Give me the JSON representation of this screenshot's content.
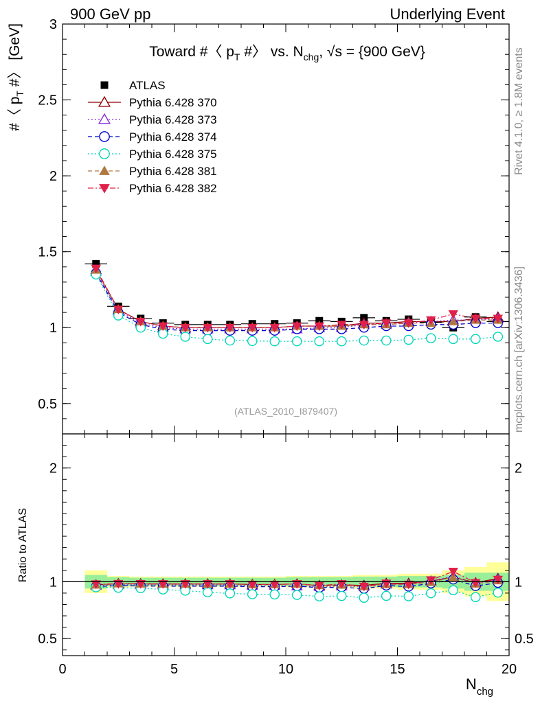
{
  "header": {
    "left": "900 GeV pp",
    "right": "Underlying Event"
  },
  "side_text": {
    "top": "Rivet 4.1.0, ≥ 1.8M events",
    "bottom": "mcplots.cern.ch [arXiv:1306.3436]"
  },
  "watermark": "(ATLAS_2010_I879407)",
  "chart_data": {
    "type": "line",
    "title_parts": {
      "prefix": "Toward #〈 p",
      "sub1": "T",
      "middle": " #〉 vs. N",
      "sub2": "chg",
      "suffix": ", √s = {900 GeV}"
    },
    "ylabel_main_parts": {
      "prefix": "#〈 p",
      "sub": "T",
      "suffix": " #〉 [GeV]"
    },
    "ylabel_ratio": "Ratio to ATLAS",
    "xlabel_parts": {
      "main": "N",
      "sub": "chg"
    },
    "xlim": [
      0,
      20
    ],
    "ylim_main": [
      0.3,
      3.0
    ],
    "ylim_ratio": [
      0.35,
      2.3
    ],
    "x_ticks": [
      0,
      5,
      10,
      15,
      20
    ],
    "y_ticks_main": [
      0.5,
      1,
      1.5,
      2,
      2.5,
      3
    ],
    "y_tick_labels_main": [
      "0.5",
      "1",
      "1.5",
      "2",
      "2.5",
      "3"
    ],
    "y_ticks_ratio": [
      0.5,
      1,
      2
    ],
    "y_tick_labels_ratio": [
      "0.5",
      "1",
      "2"
    ],
    "x": [
      1.5,
      2.5,
      3.5,
      4.5,
      5.5,
      6.5,
      7.5,
      8.5,
      9.5,
      10.5,
      11.5,
      12.5,
      13.5,
      14.5,
      15.5,
      16.5,
      17.5,
      18.5,
      19.5
    ],
    "data": {
      "name": "ATLAS",
      "values": [
        1.42,
        1.14,
        1.06,
        1.03,
        1.02,
        1.02,
        1.02,
        1.025,
        1.025,
        1.03,
        1.045,
        1.04,
        1.065,
        1.045,
        1.055,
        1.035,
        1.0,
        1.07,
        1.04
      ],
      "band_inner": [
        0.06,
        0.04,
        0.035,
        0.035,
        0.035,
        0.035,
        0.035,
        0.035,
        0.035,
        0.04,
        0.04,
        0.04,
        0.045,
        0.045,
        0.05,
        0.05,
        0.06,
        0.08,
        0.08
      ],
      "band_outer": [
        0.1,
        0.05,
        0.045,
        0.045,
        0.045,
        0.045,
        0.045,
        0.045,
        0.045,
        0.05,
        0.05,
        0.05,
        0.06,
        0.06,
        0.07,
        0.07,
        0.1,
        0.13,
        0.17
      ]
    },
    "series": [
      {
        "name": "Pythia 6.428 370",
        "color": "#8b0000",
        "marker": "triangle-open",
        "dash": "",
        "values": [
          1.38,
          1.12,
          1.04,
          1.01,
          1.0,
          1.0,
          1.0,
          1.0,
          1.0,
          1.01,
          1.01,
          1.01,
          1.03,
          1.03,
          1.04,
          1.04,
          1.04,
          1.06,
          1.07
        ]
      },
      {
        "name": "Pythia 6.428 373",
        "color": "#8a2be2",
        "marker": "triangle-open",
        "dash": "2,3",
        "values": [
          1.37,
          1.11,
          1.03,
          1.0,
          0.99,
          0.99,
          0.99,
          0.99,
          0.99,
          0.99,
          1.0,
          1.0,
          1.02,
          1.02,
          1.03,
          1.04,
          1.05,
          1.05,
          1.06
        ]
      },
      {
        "name": "Pythia 6.428 374",
        "color": "#0000cd",
        "marker": "circle-open",
        "dash": "6,4",
        "values": [
          1.36,
          1.1,
          1.02,
          0.99,
          0.98,
          0.98,
          0.98,
          0.98,
          0.98,
          0.99,
          0.99,
          0.99,
          1.0,
          1.01,
          1.01,
          1.02,
          1.02,
          1.03,
          1.03
        ]
      },
      {
        "name": "Pythia 6.428 375",
        "color": "#00d8b8",
        "marker": "circle-open",
        "dash": "2,3",
        "values": [
          1.35,
          1.08,
          1.0,
          0.96,
          0.94,
          0.925,
          0.915,
          0.912,
          0.91,
          0.91,
          0.91,
          0.91,
          0.915,
          0.915,
          0.92,
          0.93,
          0.925,
          0.925,
          0.94
        ]
      },
      {
        "name": "Pythia 6.428 381",
        "color": "#b07840",
        "marker": "triangle-filled",
        "dash": "6,4",
        "values": [
          1.38,
          1.12,
          1.04,
          1.01,
          1.0,
          1.0,
          1.0,
          1.0,
          1.0,
          1.01,
          1.01,
          1.01,
          1.02,
          1.02,
          1.03,
          1.03,
          1.04,
          1.05,
          1.05
        ]
      },
      {
        "name": "Pythia 6.428 382",
        "color": "#e0204a",
        "marker": "triangle-down-filled",
        "dash": "8,3,2,3",
        "values": [
          1.39,
          1.12,
          1.04,
          1.01,
          1.0,
          1.0,
          1.0,
          1.0,
          1.0,
          1.01,
          1.01,
          1.02,
          1.02,
          1.03,
          1.03,
          1.05,
          1.09,
          1.06,
          1.06
        ]
      }
    ]
  }
}
